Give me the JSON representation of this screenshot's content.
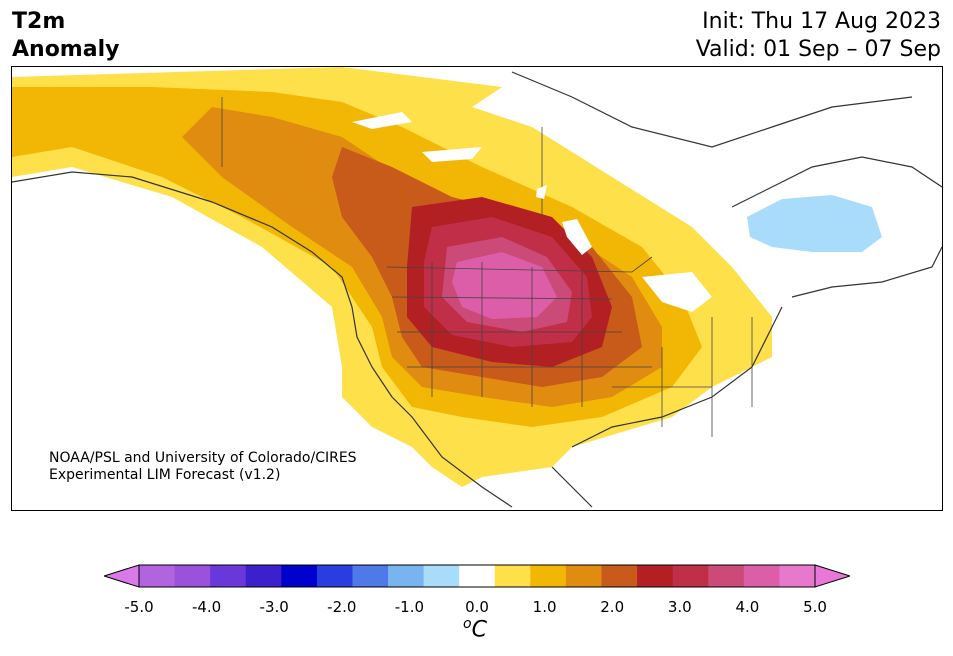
{
  "header": {
    "variable": "T2m",
    "subtitle": "Anomaly",
    "init": "Init: Thu 17 Aug 2023",
    "valid": "Valid: 01 Sep – 07 Sep"
  },
  "map": {
    "region": "North America",
    "credit_line1": "NOAA/PSL and University of Colorado/CIRES",
    "credit_line2": "Experimental LIM Forecast (v1.2)",
    "anomaly_summary": {
      "max_warm_center": "Northern Great Plains",
      "max_value_c": 4.5,
      "cool_region": "Hudson Bay / Quebec",
      "min_value_c": -1.0
    }
  },
  "colorbar": {
    "unit_base": "C",
    "unit_sup": "o",
    "ticks": [
      "-5.0",
      "-4.0",
      "-3.0",
      "-2.0",
      "-1.0",
      "0.0",
      "1.0",
      "2.0",
      "3.0",
      "4.0",
      "5.0"
    ],
    "levels": [
      {
        "range": "<-5.0",
        "color": "#d87ae8"
      },
      {
        "range": "-5.0 to -4.5",
        "color": "#b264e0"
      },
      {
        "range": "-4.5 to -4.0",
        "color": "#9a52dc"
      },
      {
        "range": "-4.0 to -3.5",
        "color": "#6a38d8"
      },
      {
        "range": "-3.5 to -3.0",
        "color": "#3c20cc"
      },
      {
        "range": "-3.0 to -2.5",
        "color": "#0000cc"
      },
      {
        "range": "-2.5 to -2.0",
        "color": "#2a3ee0"
      },
      {
        "range": "-2.0 to -1.5",
        "color": "#4f78e8"
      },
      {
        "range": "-1.5 to -1.0",
        "color": "#78b4f0"
      },
      {
        "range": "-1.0 to -0.5",
        "color": "#a9dcfa"
      },
      {
        "range": "-0.5 to 0.5",
        "color": "#ffffff"
      },
      {
        "range": "0.5 to 1.0",
        "color": "#fde04a"
      },
      {
        "range": "1.0 to 1.5",
        "color": "#f2b705"
      },
      {
        "range": "1.5 to 2.0",
        "color": "#e08c10"
      },
      {
        "range": "2.0 to 2.5",
        "color": "#c85a1a"
      },
      {
        "range": "2.5 to 3.0",
        "color": "#b22024"
      },
      {
        "range": "3.0 to 3.5",
        "color": "#c02e48"
      },
      {
        "range": "3.5 to 4.0",
        "color": "#cc4a78"
      },
      {
        "range": "4.0 to 4.5",
        "color": "#dc5ea8"
      },
      {
        "range": "4.5 to 5.0",
        "color": "#e878cc"
      },
      {
        "range": ">5.0",
        "color": "#e878d8"
      }
    ]
  }
}
